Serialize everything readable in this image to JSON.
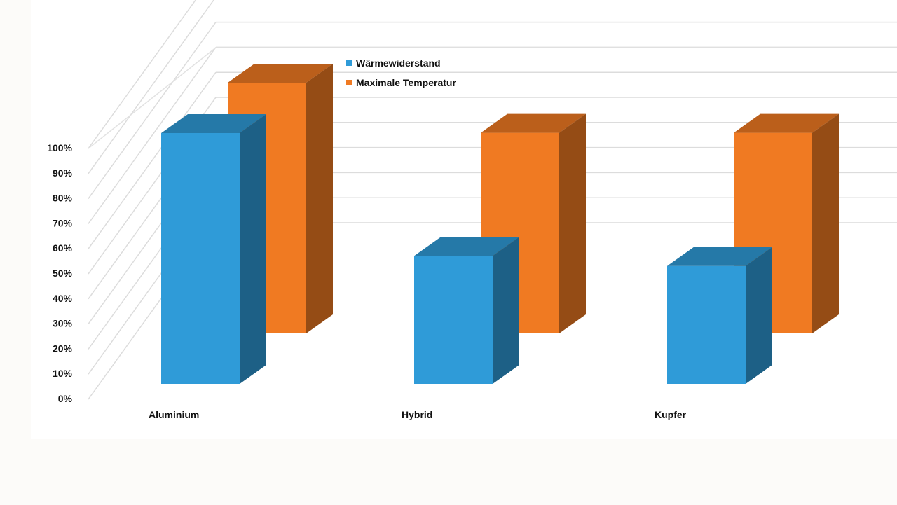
{
  "chart_data": {
    "type": "bar",
    "categories": [
      "Aluminium",
      "Hybrid",
      "Kupfer"
    ],
    "series": [
      {
        "name": "Wärmewiderstand",
        "values": [
          100,
          51,
          47
        ],
        "color": "#2f9bd8"
      },
      {
        "name": "Maximale Temperatur",
        "values": [
          100,
          80,
          80
        ],
        "color": "#f07a22"
      }
    ],
    "y_ticks": [
      "0%",
      "10%",
      "20%",
      "30%",
      "40%",
      "50%",
      "60%",
      "70%",
      "80%",
      "90%",
      "100%"
    ],
    "ylim": [
      0,
      100
    ],
    "grid": true,
    "legend_position": "top",
    "style": "3d-clustered-column"
  }
}
